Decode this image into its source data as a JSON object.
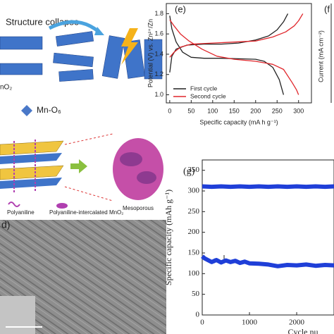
{
  "labels": {
    "panel_e": "(e)",
    "panel_f": "(f",
    "panel_g": "(g)",
    "panel_d": "d)",
    "structure_collapse": "Structure collapse",
    "mno2": "nO₂",
    "mn_o6": "Mn-O₆",
    "mesoporous": "Mesoporous",
    "polyaniline": "Polyaniline",
    "intercalated": "Polyaniline-intercalated MnO₂",
    "f_ylabel": "Current (mA cm⁻²)"
  },
  "chart_data": [
    {
      "type": "line",
      "xlabel": "Specific capacity (mA h g⁻¹)",
      "ylabel": "Potential (V) vs. Zn²⁺/Zn",
      "xlim": [
        -8,
        330
      ],
      "ylim": [
        0.92,
        1.9
      ],
      "xticks": [
        0,
        50,
        100,
        150,
        200,
        250,
        300
      ],
      "yticks": [
        {
          "value": 1,
          "label": "1.0"
        },
        1.2,
        1.4,
        1.6,
        1.8
      ],
      "legend": "lower left",
      "series": [
        {
          "name": "First cycle",
          "color": "#222222",
          "x": [
            0,
            5,
            15,
            30,
            50,
            80,
            120,
            160,
            200,
            220,
            240,
            255,
            265,
            null,
            0,
            5,
            15,
            40,
            80,
            120,
            160,
            200,
            230,
            250,
            265,
            275
          ],
          "values": [
            1.78,
            1.65,
            1.52,
            1.42,
            1.37,
            1.36,
            1.36,
            1.355,
            1.35,
            1.33,
            1.27,
            1.15,
            1.0,
            null,
            1.22,
            1.38,
            1.45,
            1.49,
            1.5,
            1.5,
            1.51,
            1.54,
            1.58,
            1.64,
            1.72,
            1.8
          ]
        },
        {
          "name": "Second cycle",
          "color": "#e0262b",
          "x": [
            0,
            10,
            25,
            45,
            75,
            110,
            150,
            200,
            240,
            265,
            285,
            295,
            300,
            null,
            0,
            10,
            25,
            50,
            100,
            150,
            200,
            240,
            270,
            290,
            300,
            310
          ],
          "values": [
            1.74,
            1.68,
            1.6,
            1.53,
            1.45,
            1.38,
            1.35,
            1.33,
            1.3,
            1.25,
            1.12,
            1.05,
            1.0,
            null,
            1.37,
            1.42,
            1.47,
            1.5,
            1.51,
            1.52,
            1.53,
            1.57,
            1.62,
            1.68,
            1.73,
            1.8
          ]
        }
      ]
    },
    {
      "type": "line",
      "xlabel": "Cycle nu",
      "ylabel": "Specific capacity (mAh g⁻¹)",
      "xlim": [
        0,
        2790
      ],
      "ylim": [
        0,
        375
      ],
      "xticks": [
        0,
        1000,
        2000
      ],
      "yticks": [
        0,
        50,
        100,
        150,
        200,
        250,
        300,
        350
      ],
      "series": [
        {
          "color": "#1f3fd8",
          "x": [
            0,
            200,
            400,
            600,
            800,
            1000,
            1200,
            1400,
            1600,
            1800,
            2000,
            2200,
            2400,
            2600,
            2790
          ],
          "values": [
            311,
            310,
            311,
            310,
            311,
            310,
            311,
            310,
            311,
            310,
            311,
            310,
            311,
            310,
            311
          ]
        },
        {
          "color": "#1f3fd8",
          "x": [
            0,
            50,
            100,
            200,
            300,
            400,
            500,
            600,
            700,
            800,
            900,
            1000,
            1200,
            1400,
            1600,
            1800,
            2000,
            2200,
            2400,
            2600,
            2790
          ],
          "values": [
            142,
            137,
            134,
            128,
            133,
            127,
            132,
            128,
            131,
            126,
            129,
            125,
            124,
            122,
            118,
            121,
            120,
            122,
            119,
            121,
            120
          ]
        }
      ]
    }
  ]
}
